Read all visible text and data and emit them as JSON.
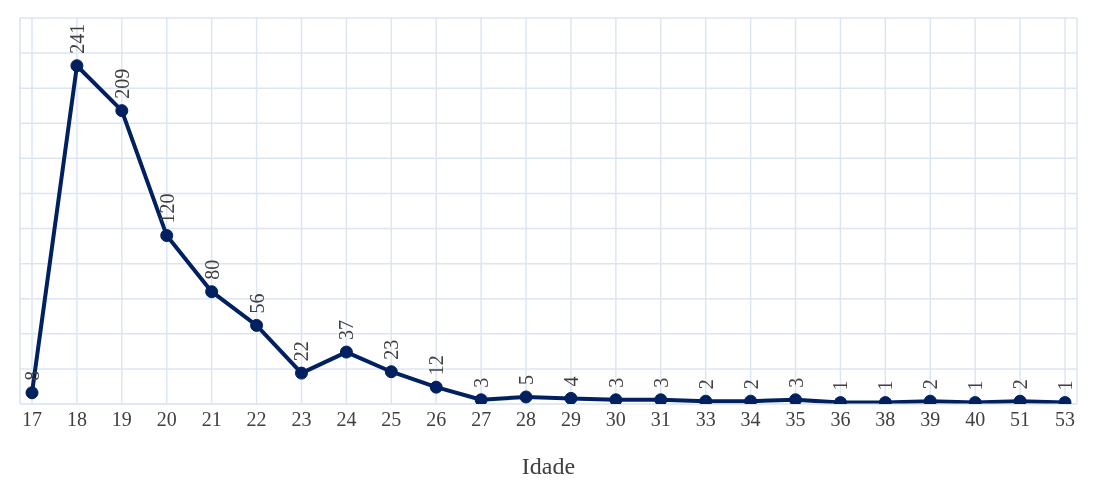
{
  "chart_data": {
    "type": "line",
    "xlabel": "Idade",
    "categories": [
      "17",
      "18",
      "19",
      "20",
      "21",
      "22",
      "23",
      "24",
      "25",
      "26",
      "27",
      "28",
      "29",
      "30",
      "31",
      "33",
      "34",
      "35",
      "36",
      "38",
      "39",
      "40",
      "51",
      "53"
    ],
    "series": [
      {
        "color": "#002060",
        "values": [
          8,
          241,
          209,
          120,
          80,
          56,
          22,
          37,
          23,
          12,
          3,
          5,
          4,
          3,
          3,
          2,
          2,
          3,
          1,
          1,
          2,
          1,
          2,
          1
        ]
      }
    ],
    "tick_labels": "x",
    "grid": true,
    "marker": "circle",
    "line_style": "solid",
    "data_labels": true
  }
}
